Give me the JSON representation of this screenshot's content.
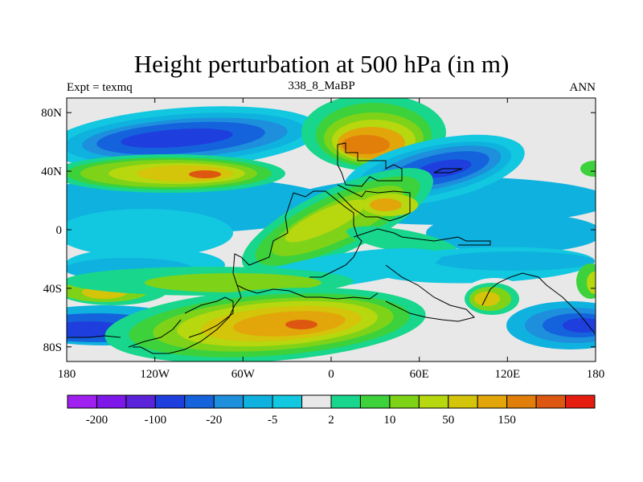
{
  "map": {
    "title": "Height perturbation at 500 hPa (in m)",
    "left_label": "Expt = texmq",
    "center_label": "338_8_MaBP",
    "right_label": "ANN",
    "lat_ticks": [
      "80N",
      "40N",
      "0",
      "40S",
      "80S"
    ],
    "lon_ticks": [
      "180",
      "120W",
      "60W",
      "0",
      "60E",
      "120E",
      "180"
    ],
    "lat_values": [
      80,
      40,
      0,
      -40,
      -80
    ],
    "lon_values": [
      -180,
      -120,
      -60,
      0,
      60,
      120,
      180
    ],
    "lat_range": [
      -90,
      90
    ],
    "lon_range": [
      -180,
      180
    ],
    "field_units": "m",
    "colorbar": {
      "labels": [
        "-200",
        "-100",
        "-20",
        "-5",
        "2",
        "10",
        "50",
        "150"
      ],
      "colors": [
        "#a020f0",
        "#7d18e8",
        "#5a23d9",
        "#1e3ede",
        "#1463dd",
        "#1d8fdc",
        "#0fb2de",
        "#12c7e0",
        "#e8e8e8",
        "#18d68c",
        "#3dd13b",
        "#7ed318",
        "#b7d70f",
        "#d4c40a",
        "#e2a60b",
        "#e17f0a",
        "#dd5711",
        "#e51d10"
      ]
    },
    "palette": {
      "neg4": "#1e3ede",
      "neg3": "#1463dd",
      "neg2": "#1d8fdc",
      "neg1": "#0fb2de",
      "neg0": "#12c7e0",
      "zero": "#e8e8e8",
      "pos0": "#18d68c",
      "pos1": "#3dd13b",
      "pos2": "#7ed318",
      "pos3": "#b7d70f",
      "pos4": "#d4c40a",
      "pos5": "#e2a60b",
      "pos6": "#e17f0a",
      "pos7": "#dd5711"
    }
  }
}
